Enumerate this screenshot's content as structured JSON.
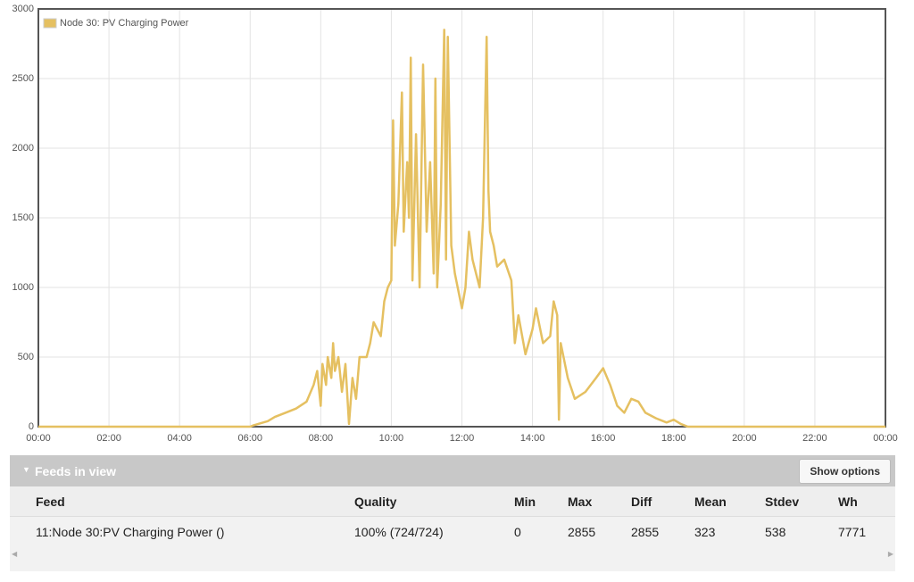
{
  "chart_data": {
    "type": "line",
    "legend": "top-left",
    "grid": true,
    "series": [
      {
        "name": "Node 30: PV Charging Power",
        "color": "#e5c061",
        "x": [
          0,
          6.0,
          6.1,
          6.5,
          6.7,
          7.0,
          7.3,
          7.6,
          7.8,
          7.9,
          8.0,
          8.05,
          8.15,
          8.2,
          8.3,
          8.35,
          8.4,
          8.5,
          8.6,
          8.7,
          8.8,
          8.9,
          9.0,
          9.1,
          9.3,
          9.4,
          9.5,
          9.7,
          9.8,
          9.9,
          10.0,
          10.05,
          10.1,
          10.2,
          10.3,
          10.35,
          10.45,
          10.5,
          10.55,
          10.6,
          10.7,
          10.8,
          10.9,
          11.0,
          11.1,
          11.2,
          11.25,
          11.3,
          11.4,
          11.5,
          11.55,
          11.6,
          11.7,
          11.8,
          12.0,
          12.1,
          12.2,
          12.3,
          12.5,
          12.6,
          12.7,
          12.75,
          12.8,
          12.9,
          13.0,
          13.2,
          13.4,
          13.5,
          13.6,
          13.8,
          14.0,
          14.1,
          14.3,
          14.5,
          14.6,
          14.7,
          14.75,
          14.8,
          15.0,
          15.2,
          15.5,
          15.8,
          16.0,
          16.2,
          16.4,
          16.6,
          16.8,
          17.0,
          17.2,
          17.5,
          17.8,
          18.0,
          18.2,
          18.4,
          24
        ],
        "values": [
          0,
          0,
          10,
          40,
          70,
          100,
          130,
          180,
          300,
          400,
          150,
          450,
          300,
          500,
          350,
          600,
          400,
          500,
          250,
          450,
          20,
          350,
          200,
          500,
          500,
          600,
          750,
          650,
          900,
          1000,
          1050,
          2200,
          1300,
          1600,
          2400,
          1400,
          1900,
          1500,
          2650,
          1050,
          2100,
          1000,
          2600,
          1400,
          1900,
          1100,
          2500,
          1000,
          1600,
          2850,
          1200,
          2800,
          1300,
          1100,
          850,
          1000,
          1400,
          1200,
          1000,
          1500,
          2800,
          1700,
          1400,
          1300,
          1150,
          1200,
          1050,
          600,
          800,
          520,
          700,
          850,
          600,
          650,
          900,
          800,
          50,
          600,
          350,
          200,
          250,
          350,
          420,
          300,
          150,
          100,
          200,
          180,
          100,
          60,
          30,
          50,
          20,
          0,
          0
        ]
      }
    ],
    "xlim": [
      0,
      24
    ],
    "xticks": [
      {
        "value": 0,
        "label": "00:00"
      },
      {
        "value": 2,
        "label": "02:00"
      },
      {
        "value": 4,
        "label": "04:00"
      },
      {
        "value": 6,
        "label": "06:00"
      },
      {
        "value": 8,
        "label": "08:00"
      },
      {
        "value": 10,
        "label": "10:00"
      },
      {
        "value": 12,
        "label": "12:00"
      },
      {
        "value": 14,
        "label": "14:00"
      },
      {
        "value": 16,
        "label": "16:00"
      },
      {
        "value": 18,
        "label": "18:00"
      },
      {
        "value": 20,
        "label": "20:00"
      },
      {
        "value": 22,
        "label": "22:00"
      },
      {
        "value": 24,
        "label": "00:00"
      }
    ],
    "ylim": [
      0,
      3000
    ],
    "yticks": [
      0,
      500,
      1000,
      1500,
      2000,
      2500,
      3000
    ]
  },
  "feeds": {
    "title": "Feeds in view",
    "button": "Show options",
    "columns": [
      "Feed",
      "Quality",
      "Min",
      "Max",
      "Diff",
      "Mean",
      "Stdev",
      "Wh"
    ],
    "rows": [
      [
        "11:Node 30:PV Charging Power ()",
        "100% (724/724)",
        0,
        2855,
        2855,
        323,
        538,
        7771
      ]
    ]
  }
}
